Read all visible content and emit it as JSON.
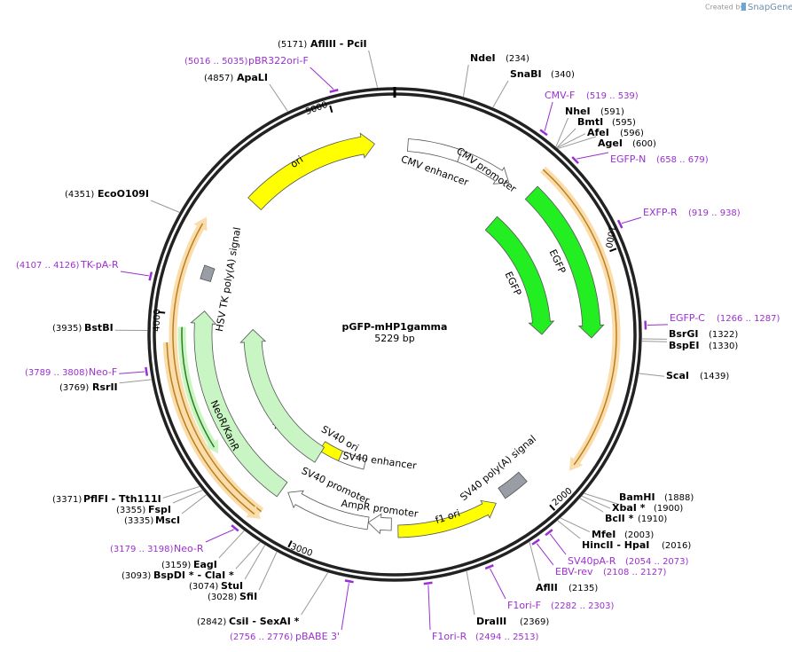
{
  "header": {
    "created_by": "Created by",
    "brand": "SnapGene"
  },
  "map": {
    "title": "pGFP-mHP1gamma",
    "length": "5229 bp",
    "ring_ticks": [
      1000,
      2000,
      3000,
      4000,
      5000
    ],
    "features": [
      "ori",
      "CMV enhancer",
      "CMV promoter",
      "EGFP",
      "EGFP",
      "SV40 poly(A) signal",
      "f1 ori",
      "AmpR promoter",
      "SV40 promoter",
      "SV40 enhancer",
      "SV40 ori",
      "NeoR/KanR",
      "NeoR/KanR",
      "HSV TK poly(A) signal"
    ],
    "sites": [
      {
        "position": "(5171)",
        "name": "AflIII  - PciI"
      },
      {
        "position": "(234)",
        "name": "NdeI"
      },
      {
        "position": "(340)",
        "name": "SnaBI"
      },
      {
        "position": "(591)",
        "name": "NheI"
      },
      {
        "position": "(595)",
        "name": "BmtI"
      },
      {
        "position": "(596)",
        "name": "AfeI"
      },
      {
        "position": "(600)",
        "name": "AgeI"
      },
      {
        "position": "(4857)",
        "name": "ApaLI"
      },
      {
        "position": "(4351)",
        "name": "EcoO109I"
      },
      {
        "position": "(1322)",
        "name": "BsrGI"
      },
      {
        "position": "(1330)",
        "name": "BspEI"
      },
      {
        "position": "(1439)",
        "name": "ScaI"
      },
      {
        "position": "(3935)",
        "name": "BstBI"
      },
      {
        "position": "(3769)",
        "name": "RsrII"
      },
      {
        "position": "(1888)",
        "name": "BamHI"
      },
      {
        "position": "(1900)",
        "name": "XbaI *"
      },
      {
        "position": "(1910)",
        "name": "BclI *"
      },
      {
        "position": "(2003)",
        "name": "MfeI"
      },
      {
        "position": "(2016)",
        "name": "HincII  - HpaI"
      },
      {
        "position": "(2135)",
        "name": "AflII"
      },
      {
        "position": "(2369)",
        "name": "DraIII"
      },
      {
        "position": "(3371)",
        "name": "PflFI  - Tth111I"
      },
      {
        "position": "(3355)",
        "name": "FspI"
      },
      {
        "position": "(3335)",
        "name": "MscI"
      },
      {
        "position": "(3159)",
        "name": "EagI"
      },
      {
        "position": "(3093)",
        "name": "BspDI *  - ClaI *"
      },
      {
        "position": "(3074)",
        "name": "StuI"
      },
      {
        "position": "(3028)",
        "name": "SfiI"
      },
      {
        "position": "(2842)",
        "name": "CsiI  - SexAI *"
      }
    ],
    "primers": [
      {
        "range": "(5016 .. 5035)",
        "name": "pBR322ori-F"
      },
      {
        "range": "(519 .. 539)",
        "name": "CMV-F"
      },
      {
        "range": "(658 .. 679)",
        "name": "EGFP-N"
      },
      {
        "range": "(919 .. 938)",
        "name": "EXFP-R"
      },
      {
        "range": "(1266 .. 1287)",
        "name": "EGFP-C"
      },
      {
        "range": "(4107 .. 4126)",
        "name": "TK-pA-R"
      },
      {
        "range": "(3789 .. 3808)",
        "name": "Neo-F"
      },
      {
        "range": "(3179 .. 3198)",
        "name": "Neo-R"
      },
      {
        "range": "(2054 .. 2073)",
        "name": "SV40pA-R"
      },
      {
        "range": "(2108 .. 2127)",
        "name": "EBV-rev"
      },
      {
        "range": "(2282 .. 2303)",
        "name": "F1ori-F"
      },
      {
        "range": "(2756 .. 2776)",
        "name": "pBABE 3'"
      },
      {
        "range": "(2494 .. 2513)",
        "name": "F1ori-R"
      }
    ]
  }
}
